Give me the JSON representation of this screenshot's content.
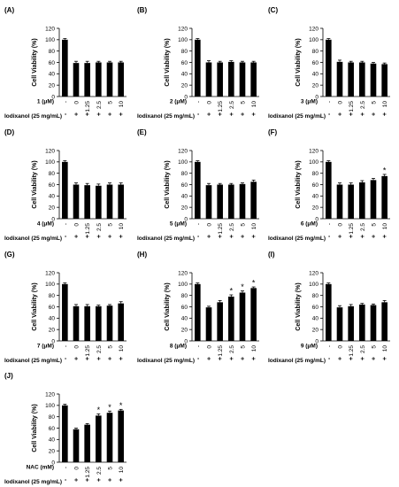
{
  "figure": {
    "ylabel": "Cell Viability (%)",
    "yticks": [
      0,
      20,
      40,
      60,
      80,
      100,
      120
    ],
    "ylim": [
      0,
      120
    ],
    "x_first_category": "-",
    "x_categories": [
      "0",
      "1.25",
      "2.5",
      "5",
      "10"
    ],
    "treatment_label": "Iodixanol (25 mg/mL)",
    "treatment_signs": [
      "-",
      "+",
      "+",
      "+",
      "+",
      "+"
    ],
    "significance_marker": "*",
    "bar_color": "#000000"
  },
  "chart_data": [
    {
      "type": "bar",
      "panel_label": "(A)",
      "xlabel": "1 (μM)",
      "categories": [
        "-",
        "0",
        "1.25",
        "2.5",
        "5",
        "10"
      ],
      "values": [
        100,
        59,
        59,
        60,
        60,
        60
      ],
      "errors": [
        2,
        3,
        3,
        2,
        2,
        2
      ],
      "significant": [
        false,
        false,
        false,
        false,
        false,
        false
      ],
      "ylabel": "Cell Viability (%)",
      "ylim": [
        0,
        120
      ]
    },
    {
      "type": "bar",
      "panel_label": "(B)",
      "xlabel": "2 (μM)",
      "categories": [
        "-",
        "0",
        "1.25",
        "2.5",
        "5",
        "10"
      ],
      "values": [
        100,
        60,
        60,
        61,
        60,
        60
      ],
      "errors": [
        2,
        3,
        2,
        2,
        2,
        2
      ],
      "significant": [
        false,
        false,
        false,
        false,
        false,
        false
      ],
      "ylabel": "Cell Viability (%)",
      "ylim": [
        0,
        120
      ]
    },
    {
      "type": "bar",
      "panel_label": "(C)",
      "xlabel": "3 (μM)",
      "categories": [
        "-",
        "0",
        "1.25",
        "2.5",
        "5",
        "10"
      ],
      "values": [
        100,
        61,
        60,
        60,
        58,
        57
      ],
      "errors": [
        2,
        3,
        2,
        2,
        2,
        2
      ],
      "significant": [
        false,
        false,
        false,
        false,
        false,
        false
      ],
      "ylabel": "Cell Viability (%)",
      "ylim": [
        0,
        120
      ]
    },
    {
      "type": "bar",
      "panel_label": "(D)",
      "xlabel": "4 (μM)",
      "categories": [
        "-",
        "0",
        "1.25",
        "2.5",
        "5",
        "10"
      ],
      "values": [
        100,
        60,
        59,
        58,
        60,
        60
      ],
      "errors": [
        2,
        3,
        3,
        3,
        3,
        3
      ],
      "significant": [
        false,
        false,
        false,
        false,
        false,
        false
      ],
      "ylabel": "Cell Viability (%)",
      "ylim": [
        0,
        120
      ]
    },
    {
      "type": "bar",
      "panel_label": "(E)",
      "xlabel": "5 (μM)",
      "categories": [
        "-",
        "0",
        "1.25",
        "2.5",
        "5",
        "10"
      ],
      "values": [
        100,
        59,
        60,
        60,
        61,
        65
      ],
      "errors": [
        2,
        3,
        2,
        2,
        2,
        3
      ],
      "significant": [
        false,
        false,
        false,
        false,
        false,
        false
      ],
      "ylabel": "Cell Viability (%)",
      "ylim": [
        0,
        120
      ]
    },
    {
      "type": "bar",
      "panel_label": "(F)",
      "xlabel": "6 (μM)",
      "categories": [
        "-",
        "0",
        "1.25",
        "2.5",
        "5",
        "10"
      ],
      "values": [
        100,
        60,
        60,
        64,
        68,
        75
      ],
      "errors": [
        2,
        3,
        3,
        3,
        3,
        3
      ],
      "significant": [
        false,
        false,
        false,
        false,
        false,
        true
      ],
      "ylabel": "Cell Viability (%)",
      "ylim": [
        0,
        120
      ]
    },
    {
      "type": "bar",
      "panel_label": "(G)",
      "xlabel": "7 (μM)",
      "categories": [
        "-",
        "0",
        "1.25",
        "2.5",
        "5",
        "10"
      ],
      "values": [
        100,
        61,
        61,
        61,
        62,
        66
      ],
      "errors": [
        2,
        3,
        3,
        2,
        2,
        3
      ],
      "significant": [
        false,
        false,
        false,
        false,
        false,
        false
      ],
      "ylabel": "Cell Viability (%)",
      "ylim": [
        0,
        120
      ]
    },
    {
      "type": "bar",
      "panel_label": "(H)",
      "xlabel": "8 (μM)",
      "categories": [
        "-",
        "0",
        "1.25",
        "2.5",
        "5",
        "10"
      ],
      "values": [
        100,
        59,
        68,
        78,
        85,
        93
      ],
      "errors": [
        2,
        2,
        3,
        3,
        3,
        2
      ],
      "significant": [
        false,
        false,
        false,
        true,
        true,
        true
      ],
      "ylabel": "Cell Viability (%)",
      "ylim": [
        0,
        120
      ]
    },
    {
      "type": "bar",
      "panel_label": "(I)",
      "xlabel": "9 (μM)",
      "categories": [
        "-",
        "0",
        "1.25",
        "2.5",
        "5",
        "10"
      ],
      "values": [
        100,
        59,
        61,
        64,
        63,
        68
      ],
      "errors": [
        2,
        3,
        3,
        2,
        2,
        3
      ],
      "significant": [
        false,
        false,
        false,
        false,
        false,
        false
      ],
      "ylabel": "Cell Viability (%)",
      "ylim": [
        0,
        120
      ]
    },
    {
      "type": "bar",
      "panel_label": "(J)",
      "xlabel": "NAC (mM)",
      "categories": [
        "-",
        "0",
        "1.25",
        "2.5",
        "5",
        "10"
      ],
      "values": [
        100,
        58,
        66,
        82,
        87,
        91
      ],
      "errors": [
        2,
        2,
        2,
        3,
        3,
        2
      ],
      "significant": [
        false,
        false,
        false,
        true,
        true,
        true
      ],
      "ylabel": "Cell Viability (%)",
      "ylim": [
        0,
        120
      ]
    }
  ]
}
